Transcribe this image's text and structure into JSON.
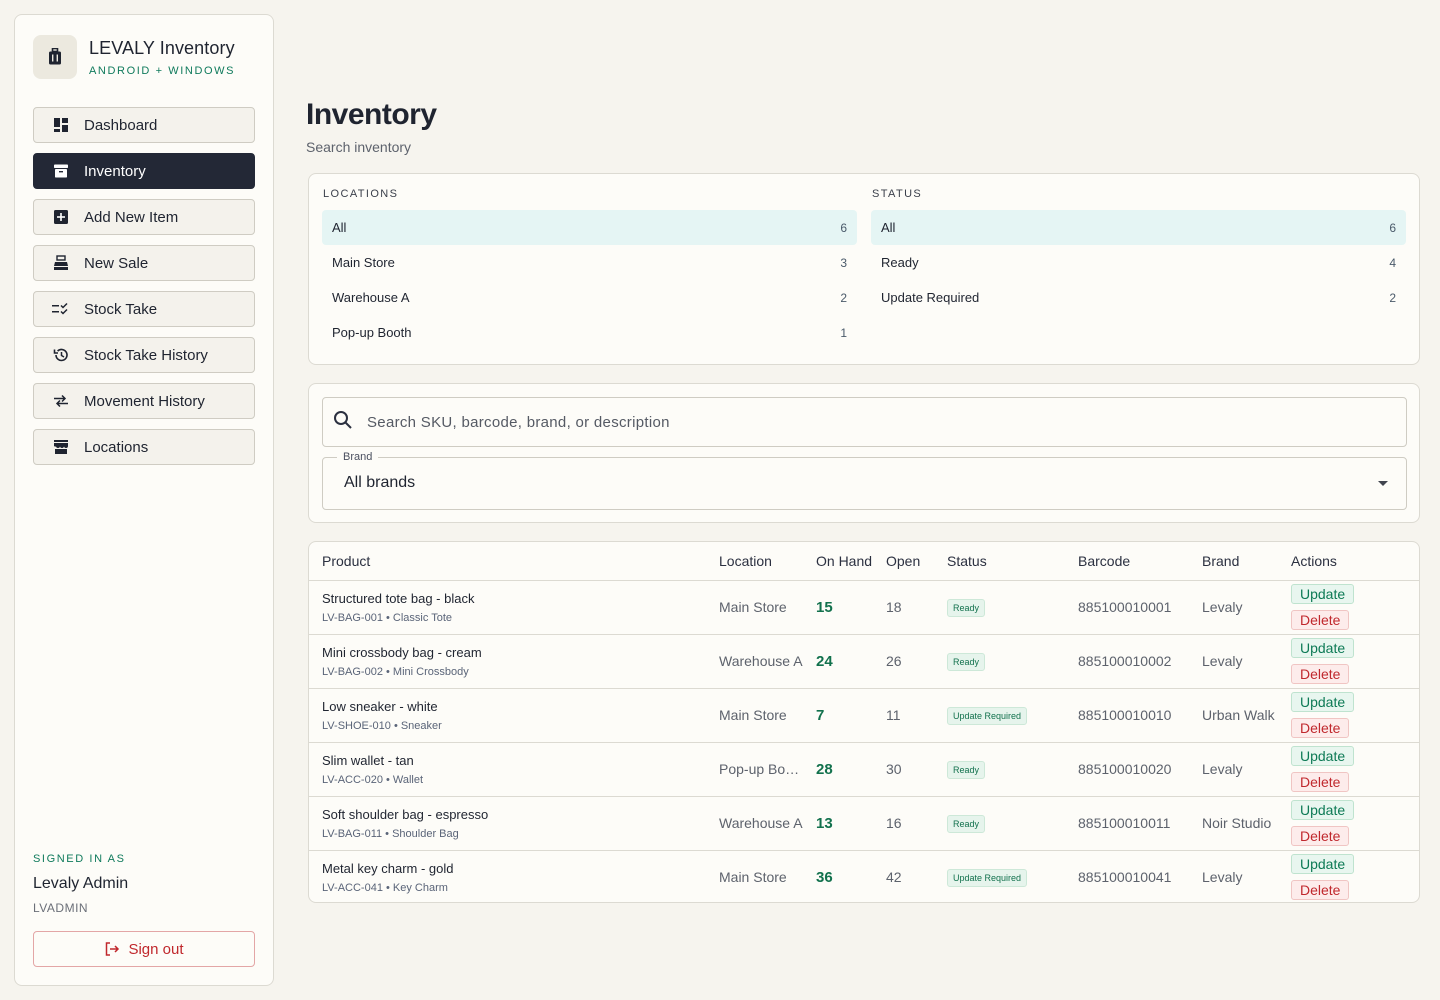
{
  "app": {
    "title": "LEVALY Inventory",
    "subtitle": "ANDROID + WINDOWS"
  },
  "nav": [
    {
      "label": "Dashboard",
      "icon": "dashboard-icon"
    },
    {
      "label": "Inventory",
      "icon": "inventory-box-icon",
      "active": true
    },
    {
      "label": "Add New Item",
      "icon": "add-box-icon"
    },
    {
      "label": "New Sale",
      "icon": "cash-register-icon"
    },
    {
      "label": "Stock Take",
      "icon": "checklist-icon"
    },
    {
      "label": "Stock Take History",
      "icon": "history-icon"
    },
    {
      "label": "Movement History",
      "icon": "swap-arrows-icon"
    },
    {
      "label": "Locations",
      "icon": "store-icon"
    }
  ],
  "user": {
    "signed_in_label": "SIGNED IN AS",
    "name": "Levaly Admin",
    "id": "LVADMIN",
    "sign_out": "Sign out"
  },
  "page": {
    "title": "Inventory",
    "subtitle": "Search inventory"
  },
  "filters": {
    "locations": {
      "heading": "LOCATIONS",
      "items": [
        {
          "label": "All",
          "count": "6",
          "selected": true
        },
        {
          "label": "Main Store",
          "count": "3"
        },
        {
          "label": "Warehouse A",
          "count": "2"
        },
        {
          "label": "Pop-up Booth",
          "count": "1"
        }
      ]
    },
    "status": {
      "heading": "STATUS",
      "items": [
        {
          "label": "All",
          "count": "6",
          "selected": true
        },
        {
          "label": "Ready",
          "count": "4"
        },
        {
          "label": "Update Required",
          "count": "2"
        }
      ]
    }
  },
  "search": {
    "placeholder": "Search SKU, barcode, brand, or description",
    "value": ""
  },
  "brand_filter": {
    "label": "Brand",
    "value": "All brands"
  },
  "table": {
    "columns": [
      "Product",
      "Location",
      "On Hand",
      "Open",
      "Status",
      "Barcode",
      "Brand",
      "Actions"
    ],
    "update_label": "Update",
    "delete_label": "Delete",
    "rows": [
      {
        "name": "Structured tote bag - black",
        "sku": "LV-BAG-001 • Classic Tote",
        "location": "Main Store",
        "on_hand": "15",
        "open": "18",
        "status": "Ready",
        "barcode": "885100010001",
        "brand": "Levaly"
      },
      {
        "name": "Mini crossbody bag - cream",
        "sku": "LV-BAG-002 • Mini Crossbody",
        "location": "Warehouse A",
        "on_hand": "24",
        "open": "26",
        "status": "Ready",
        "barcode": "885100010002",
        "brand": "Levaly"
      },
      {
        "name": "Low sneaker - white",
        "sku": "LV-SHOE-010 • Sneaker",
        "location": "Main Store",
        "on_hand": "7",
        "open": "11",
        "status": "Update Required",
        "barcode": "885100010010",
        "brand": "Urban Walk"
      },
      {
        "name": "Slim wallet - tan",
        "sku": "LV-ACC-020 • Wallet",
        "location": "Pop-up Booth",
        "on_hand": "28",
        "open": "30",
        "status": "Ready",
        "barcode": "885100010020",
        "brand": "Levaly"
      },
      {
        "name": "Soft shoulder bag - espresso",
        "sku": "LV-BAG-011 • Shoulder Bag",
        "location": "Warehouse A",
        "on_hand": "13",
        "open": "16",
        "status": "Ready",
        "barcode": "885100010011",
        "brand": "Noir Studio"
      },
      {
        "name": "Metal key charm - gold",
        "sku": "LV-ACC-041 • Key Charm",
        "location": "Main Store",
        "on_hand": "36",
        "open": "42",
        "status": "Update Required",
        "barcode": "885100010041",
        "brand": "Levaly"
      }
    ]
  },
  "colors": {
    "accent_green": "#0f7a5c",
    "nav_active": "#232836",
    "danger": "#c0282d",
    "selected_filter": "#e5f5f4"
  }
}
